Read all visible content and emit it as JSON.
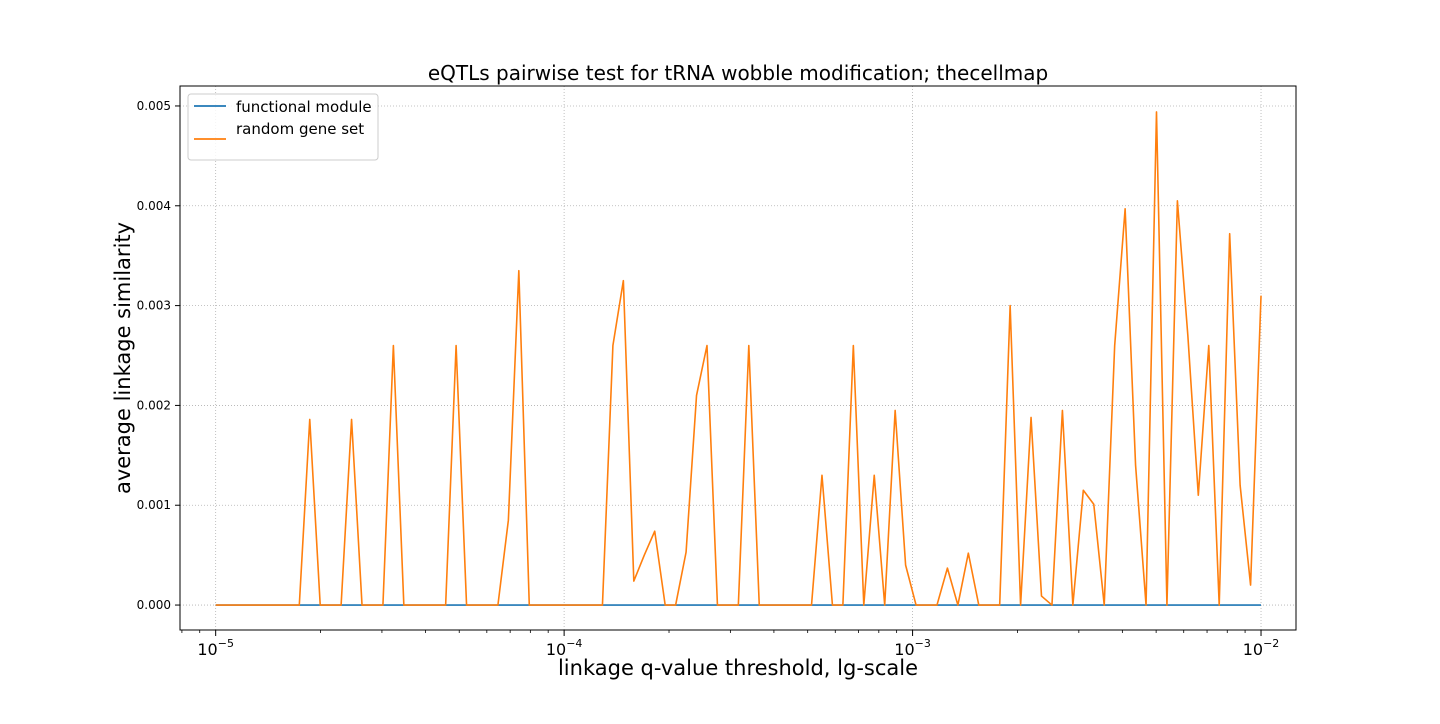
{
  "chart_data": {
    "type": "line",
    "title": "eQTLs pairwise test for tRNA wobble modification; thecellmap",
    "xlabel": "linkage q-value threshold, lg-scale",
    "ylabel": "average linkage similarity",
    "xscale": "log",
    "xlim": [
      7.9e-06,
      0.0126
    ],
    "ylim": [
      -0.00025,
      0.0052
    ],
    "grid": true,
    "legend_position": "top-left",
    "x_ticks": [
      {
        "value": 1e-05,
        "base": "10",
        "exp": "−5"
      },
      {
        "value": 0.0001,
        "base": "10",
        "exp": "−4"
      },
      {
        "value": 0.001,
        "base": "10",
        "exp": "−3"
      },
      {
        "value": 0.01,
        "base": "10",
        "exp": "−2"
      }
    ],
    "y_ticks": [
      {
        "value": 0.0,
        "label": "0.000"
      },
      {
        "value": 0.001,
        "label": "0.001"
      },
      {
        "value": 0.002,
        "label": "0.002"
      },
      {
        "value": 0.003,
        "label": "0.003"
      },
      {
        "value": 0.004,
        "label": "0.004"
      },
      {
        "value": 0.005,
        "label": "0.005"
      }
    ],
    "log_x_start": -5,
    "log_x_step": 0.03,
    "series": [
      {
        "name": "functional module",
        "color": "#1f77b4",
        "x": [
          1e-05,
          0.01
        ],
        "y": [
          0.0,
          0.0
        ]
      },
      {
        "name": "random gene set",
        "color": "#ff7f0e",
        "y": [
          0,
          0,
          0,
          0,
          0,
          0,
          0,
          0,
          0,
          0.00186,
          0,
          0,
          0,
          0.00186,
          0,
          0,
          0,
          0.0026,
          0,
          0,
          0,
          0,
          0,
          0.0026,
          0,
          0,
          0,
          0,
          0.00085,
          0.00335,
          0,
          0,
          0,
          0,
          0,
          0,
          0,
          0,
          0.0026,
          0.00325,
          0.00024,
          0.0005,
          0.00074,
          0,
          0,
          0.00053,
          0.0021,
          0.0026,
          0,
          0,
          0,
          0.0026,
          0,
          0,
          0,
          0,
          0,
          0,
          0.0013,
          0,
          0,
          0.0026,
          0,
          0.0013,
          0,
          0.00195,
          0.0004,
          0,
          0,
          0,
          0.00037,
          0,
          0.00052,
          0,
          0,
          0,
          0.003,
          0,
          0.00188,
          9e-05,
          0,
          0.00195,
          0,
          0.00115,
          0.00101,
          0,
          0.0026,
          0.00397,
          0.0014,
          0,
          0.00494,
          0,
          0.00405,
          0.0027,
          0.0011,
          0.0026,
          0,
          0.00372,
          0.0012,
          0.0002,
          0.0031
        ]
      }
    ]
  }
}
